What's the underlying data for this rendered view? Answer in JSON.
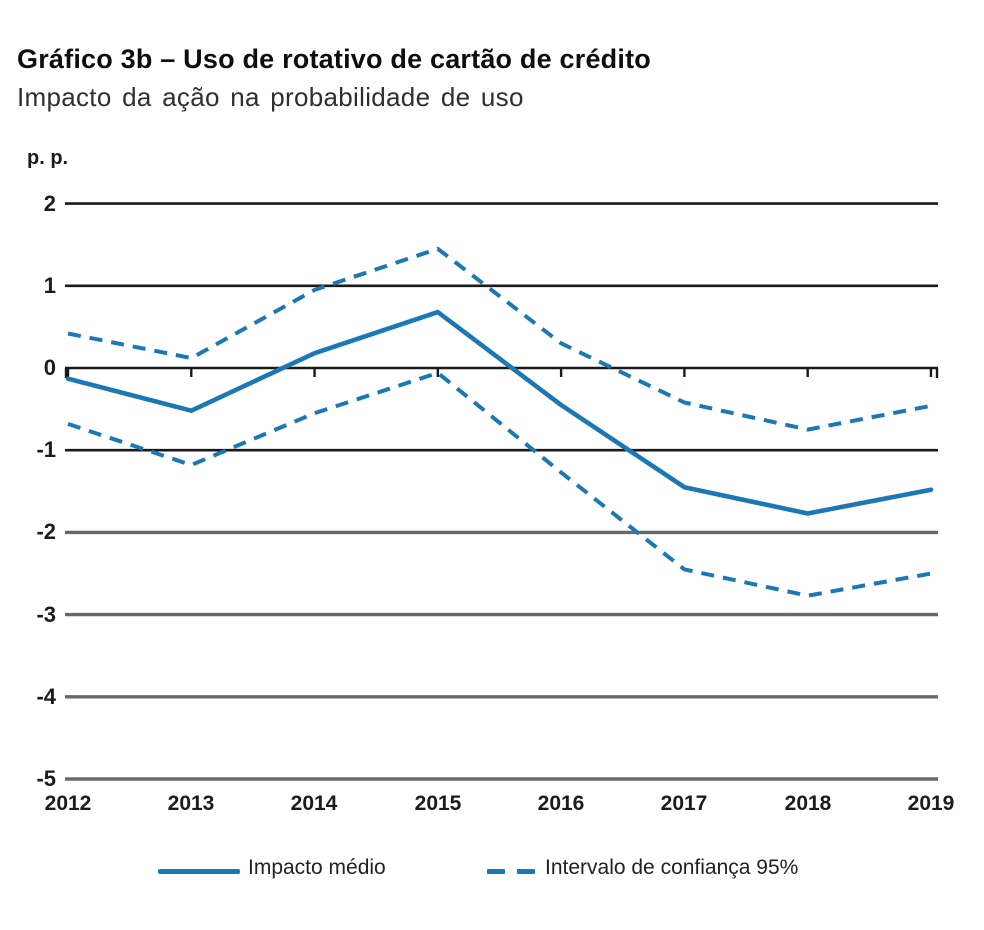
{
  "header": {
    "title": "Gráfico 3b – Uso de rotativo de cartão de crédito",
    "subtitle": "Impacto da ação na probabilidade de uso"
  },
  "chart_data": {
    "type": "line",
    "title": "Gráfico 3b – Uso de rotativo de cartão de crédito",
    "subtitle": "Impacto da ação na probabilidade de uso",
    "unit_label": "p. p.",
    "xlabel": "",
    "ylabel": "p. p.",
    "x": [
      2012,
      2013,
      2014,
      2015,
      2016,
      2017,
      2018,
      2019
    ],
    "x_labels": [
      "2012",
      "2013",
      "2014",
      "2015",
      "2016",
      "2017",
      "2018",
      "2019"
    ],
    "ylim": [
      -5,
      2
    ],
    "yticks": [
      2,
      1,
      0,
      -1,
      -2,
      -3,
      -4,
      -5
    ],
    "ytick_labels": [
      "2",
      "1",
      "0",
      "-1",
      "-2",
      "-3",
      "-4",
      "-5"
    ],
    "grid": {
      "on": true,
      "dark_values": [
        2,
        1,
        0,
        -1
      ],
      "gray_values": [
        -2,
        -3,
        -4,
        -5
      ]
    },
    "series": [
      {
        "name": "Impacto médio",
        "style": "solid",
        "color": "#1b78b4",
        "values": [
          -0.13,
          -0.52,
          0.18,
          0.68,
          -0.45,
          -1.45,
          -1.77,
          -1.48
        ]
      },
      {
        "name": "Intervalo de confiança 95% (limite superior)",
        "style": "dashed",
        "color": "#1b78b4",
        "values": [
          0.42,
          0.12,
          0.95,
          1.45,
          0.3,
          -0.42,
          -0.75,
          -0.46
        ]
      },
      {
        "name": "Intervalo de confiança 95% (limite inferior)",
        "style": "dashed",
        "color": "#1b78b4",
        "values": [
          -0.68,
          -1.18,
          -0.55,
          -0.06,
          -1.27,
          -2.45,
          -2.77,
          -2.5
        ]
      }
    ],
    "legend": {
      "position": "bottom",
      "items": [
        {
          "label": "Impacto médio",
          "style": "solid"
        },
        {
          "label": "Intervalo de confiança 95%",
          "style": "dashed"
        }
      ]
    },
    "colors": {
      "line_blue": "#1b78b4",
      "grid_dark": "#1a1a1a",
      "grid_gray": "#686868",
      "text": "#1c1c1c"
    }
  }
}
